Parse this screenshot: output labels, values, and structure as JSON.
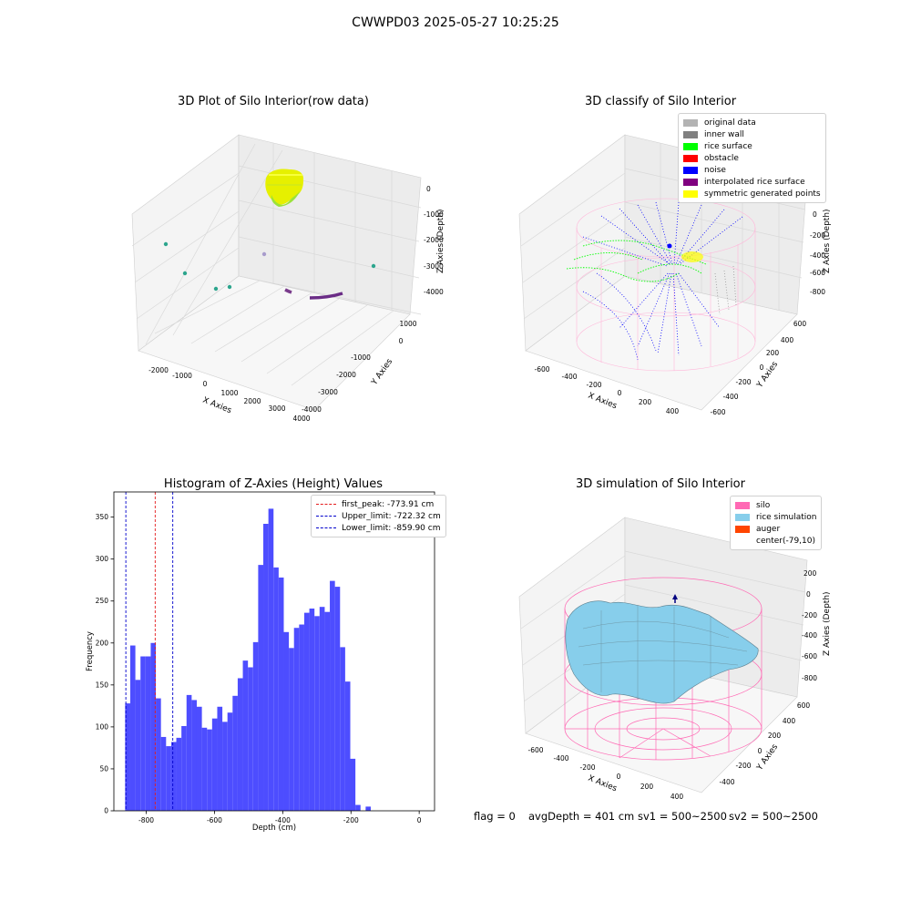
{
  "suptitle": "CWWPD03 2025-05-27 10:25:25",
  "colors": {
    "grid": "#d9d9d9",
    "pane": "#f2f2f2",
    "hist_bar": "#4d4dff",
    "first_peak": "#e41a1c",
    "limit": "#0000cc",
    "silo": "#ff69b4",
    "rice": "#87ceeb"
  },
  "chart_data": [
    {
      "type": "scatter",
      "projection": "3d",
      "title": "3D Plot of Silo Interior(row data)",
      "xlabel": "X Axies",
      "ylabel": "Y Axies",
      "zlabel": "Z Axies (Depth)",
      "xticks": [
        "-2000",
        "-1000",
        "0",
        "1000",
        "2000",
        "3000",
        "4000"
      ],
      "yticks": [
        "1000",
        "0",
        "-1000",
        "-2000",
        "-3000",
        "-4000"
      ],
      "zticks": [
        "0",
        "-1000",
        "-2000",
        "-3000",
        "-4000"
      ],
      "grid": true
    },
    {
      "type": "scatter",
      "projection": "3d",
      "title": "3D classify of Silo Interior",
      "xlabel": "X Axies",
      "ylabel": "Y Axies",
      "zlabel": "Z Axies (Depth)",
      "xticks": [
        "-600",
        "-400",
        "-200",
        "0",
        "200",
        "400"
      ],
      "yticks": [
        "600",
        "400",
        "200",
        "0",
        "-200",
        "-400",
        "-600"
      ],
      "zticks": [
        "200",
        "0",
        "-200",
        "-400",
        "-600",
        "-800"
      ],
      "legend_position": "top-right",
      "legend": [
        {
          "label": "original data",
          "color": "#b3b3b3"
        },
        {
          "label": "inner wall",
          "color": "#808080"
        },
        {
          "label": "rice surface",
          "color": "#00ff00"
        },
        {
          "label": "obstacle",
          "color": "#ff0000"
        },
        {
          "label": "noise",
          "color": "#0000ff"
        },
        {
          "label": "interpolated rice surface",
          "color": "#800080"
        },
        {
          "label": "symmetric generated points",
          "color": "#ffff00"
        }
      ],
      "grid": true
    },
    {
      "type": "bar",
      "title": "Histogram of Z-Axies (Height) Values",
      "xlabel": "Depth (cm)",
      "ylabel": "Frequency",
      "xlim": [
        -895,
        45
      ],
      "ylim": [
        0,
        380
      ],
      "xticks": [
        "-800",
        "-600",
        "-400",
        "-200",
        "0"
      ],
      "yticks": [
        "0",
        "50",
        "100",
        "150",
        "200",
        "250",
        "300",
        "350"
      ],
      "bin_start": -862,
      "bin_width": 15,
      "values": [
        128,
        197,
        156,
        184,
        184,
        200,
        134,
        88,
        77,
        82,
        87,
        101,
        138,
        132,
        124,
        99,
        97,
        110,
        124,
        106,
        117,
        137,
        158,
        179,
        171,
        201,
        293,
        342,
        360,
        290,
        278,
        213,
        194,
        218,
        222,
        236,
        241,
        232,
        243,
        237,
        274,
        267,
        195,
        154,
        62,
        7,
        0,
        5
      ],
      "lines": [
        {
          "label": "first_peak: -773.91 cm",
          "x": -773.91,
          "color": "#e41a1c"
        },
        {
          "label": "Upper_limit: -722.32 cm",
          "x": -722.32,
          "color": "#0000cc"
        },
        {
          "label": "Lower_limit: -859.90 cm",
          "x": -859.9,
          "color": "#0000cc"
        }
      ],
      "legend_position": "top-right",
      "grid": false
    },
    {
      "type": "surface",
      "projection": "3d",
      "title": "3D simulation of Silo Interior",
      "xlabel": "X Axies",
      "ylabel": "Y Axies",
      "zlabel": "Z Axies (Depth)",
      "xticks": [
        "-600",
        "-400",
        "-200",
        "0",
        "200",
        "400"
      ],
      "yticks": [
        "600",
        "400",
        "200",
        "0",
        "-200",
        "-400"
      ],
      "zticks": [
        "200",
        "0",
        "-200",
        "-400",
        "-600",
        "-800"
      ],
      "legend_position": "top-right",
      "legend": [
        {
          "label": "silo",
          "color": "#ff69b4"
        },
        {
          "label": "rice simulation",
          "color": "#87ceeb"
        },
        {
          "label": "auger",
          "color": "#ff4500"
        },
        {
          "label": "center(-79,10)",
          "color": ""
        }
      ],
      "grid": true
    }
  ],
  "footer": {
    "flag": "flag = 0",
    "avg_depth": "avgDepth = 401 cm",
    "sv1": "sv1 = 500~2500",
    "sv2": "sv2 = 500~2500"
  }
}
